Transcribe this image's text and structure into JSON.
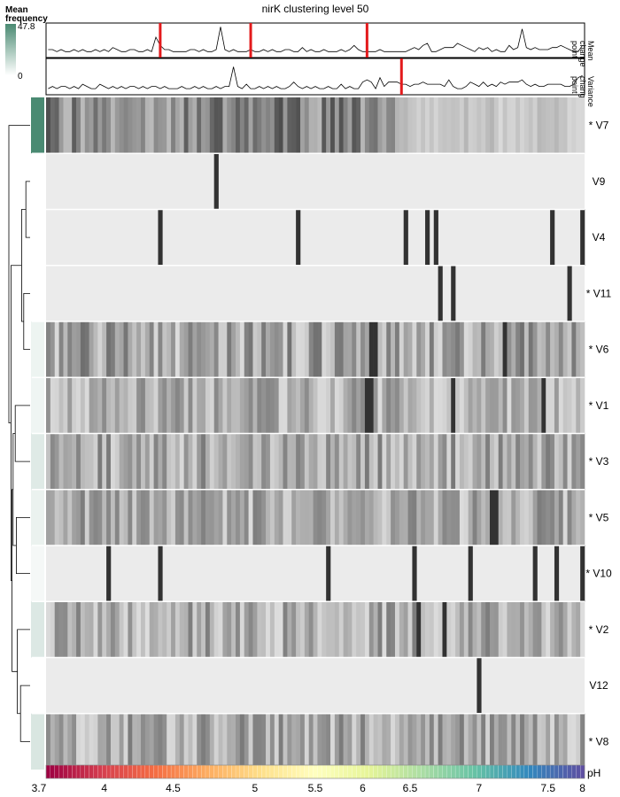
{
  "chart_data": {
    "type": "heatmap",
    "title": "nirK clustering level 50",
    "legend": {
      "title_line1": "Mean",
      "title_line2": "frequency",
      "max_label": "47.8",
      "min_label": "0",
      "max_value": 47.8,
      "min_value": 0,
      "low_color": "#ffffff",
      "high_color": "#4a8a72"
    },
    "track_labels": [
      {
        "line1": "Mean",
        "line2": "change",
        "line3": "point"
      },
      {
        "line1": "Variance",
        "line2": "change",
        "line3": "point"
      }
    ],
    "n_samples": 125,
    "track_max": 15,
    "mean_track": [
      3,
      3,
      2,
      3,
      2,
      2,
      3,
      2,
      3,
      2,
      2,
      3,
      2,
      3,
      2,
      4,
      3,
      2,
      2,
      3,
      3,
      2,
      2,
      3,
      2,
      9,
      5,
      3,
      3,
      2,
      2,
      2,
      2,
      3,
      3,
      2,
      3,
      2,
      2,
      3,
      14,
      3,
      2,
      3,
      2,
      2,
      2,
      3,
      2,
      2,
      3,
      2,
      3,
      2,
      2,
      3,
      3,
      2,
      2,
      4,
      2,
      3,
      2,
      2,
      3,
      2,
      2,
      2,
      3,
      2,
      3,
      5,
      3,
      2,
      2,
      2,
      2,
      3,
      2,
      2,
      2,
      2,
      2,
      2,
      3,
      4,
      3,
      5,
      6,
      2,
      2,
      3,
      4,
      4,
      4,
      6,
      5,
      4,
      3,
      2,
      4,
      3,
      4,
      2,
      3,
      2,
      2,
      5,
      3,
      4,
      13,
      4,
      3,
      4,
      3,
      3,
      3,
      4,
      4,
      5,
      4,
      3,
      2,
      2,
      5
    ],
    "mean_change_points": [
      26,
      47,
      74
    ],
    "var_track": [
      2,
      3,
      2,
      3,
      3,
      2,
      3,
      2,
      4,
      3,
      2,
      2,
      4,
      3,
      2,
      3,
      2,
      3,
      2,
      3,
      3,
      2,
      3,
      2,
      3,
      3,
      2,
      3,
      2,
      2,
      2,
      3,
      2,
      2,
      3,
      2,
      3,
      2,
      2,
      3,
      2,
      3,
      3,
      12,
      3,
      2,
      4,
      2,
      2,
      3,
      2,
      3,
      2,
      3,
      2,
      2,
      3,
      5,
      3,
      2,
      3,
      2,
      3,
      2,
      2,
      3,
      2,
      2,
      4,
      2,
      3,
      2,
      2,
      5,
      6,
      5,
      2,
      7,
      3,
      5,
      5,
      5,
      4,
      4,
      3,
      4,
      4,
      5,
      4,
      4,
      4,
      4,
      3,
      6,
      3,
      2,
      2,
      3,
      5,
      4,
      3,
      5,
      3,
      4,
      3,
      5,
      4,
      5,
      5,
      5,
      6,
      4,
      3,
      4,
      3,
      3,
      4,
      4,
      4,
      4,
      3,
      3,
      4,
      7,
      8
    ],
    "var_change_points": [
      82
    ],
    "rows": [
      {
        "label": "* V7",
        "mean_frequency": 47.8,
        "base": 0.22,
        "amp": 0.5,
        "seed": 7,
        "fade_from": 83,
        "marks": []
      },
      {
        "label": "V9",
        "mean_frequency": 0,
        "base": 0.1,
        "amp": 0,
        "seed": 9,
        "fade_from": null,
        "marks": [
          39
        ]
      },
      {
        "label": "V4",
        "mean_frequency": 0,
        "base": 0.1,
        "amp": 0,
        "seed": 4,
        "fade_from": null,
        "marks": [
          26,
          58,
          83,
          88,
          90,
          117,
          124
        ]
      },
      {
        "label": "* V11",
        "mean_frequency": 0,
        "base": 0.1,
        "amp": 0,
        "seed": 11,
        "fade_from": null,
        "marks": [
          91,
          94,
          121
        ]
      },
      {
        "label": "* V6",
        "mean_frequency": 1.5,
        "base": 0.07,
        "amp": 0.5,
        "seed": 6,
        "fade_from": null,
        "marks": [
          75,
          76,
          106
        ]
      },
      {
        "label": "* V1",
        "mean_frequency": 1.2,
        "base": 0.07,
        "amp": 0.4,
        "seed": 1,
        "fade_from": null,
        "marks": [
          74,
          75,
          94,
          115
        ]
      },
      {
        "label": "* V3",
        "mean_frequency": 5.0,
        "base": 0.08,
        "amp": 0.45,
        "seed": 3,
        "fade_from": null,
        "marks": []
      },
      {
        "label": "* V5",
        "mean_frequency": 2.0,
        "base": 0.06,
        "amp": 0.45,
        "seed": 5,
        "fade_from": null,
        "marks": [
          103,
          104
        ]
      },
      {
        "label": "* V10",
        "mean_frequency": 0.5,
        "base": 0.1,
        "amp": 0,
        "seed": 10,
        "fade_from": null,
        "marks": [
          14,
          26,
          65,
          85,
          98,
          113,
          118,
          124
        ]
      },
      {
        "label": "* V2",
        "mean_frequency": 6.0,
        "base": 0.06,
        "amp": 0.45,
        "seed": 2,
        "fade_from": null,
        "marks": [
          86,
          92
        ]
      },
      {
        "label": "V12",
        "mean_frequency": 0,
        "base": 0.1,
        "amp": 0,
        "seed": 12,
        "fade_from": null,
        "marks": [
          100
        ]
      },
      {
        "label": "* V8",
        "mean_frequency": 7.0,
        "base": 0.07,
        "amp": 0.45,
        "seed": 8,
        "fade_from": null,
        "marks": []
      }
    ],
    "ph_axis": {
      "label": "pH",
      "min": 3.7,
      "max": 8.0,
      "ticks": [
        {
          "label": "3.7",
          "value": 3.7
        },
        {
          "label": "4",
          "value": 4.0
        },
        {
          "label": "4.5",
          "value": 4.5
        },
        {
          "label": "5",
          "value": 5.0
        },
        {
          "label": "5.5",
          "value": 5.5
        },
        {
          "label": "6",
          "value": 6.0
        },
        {
          "label": "6.5",
          "value": 6.5
        },
        {
          "label": "7",
          "value": 7.0
        },
        {
          "label": "7.5",
          "value": 7.5
        },
        {
          "label": "8",
          "value": 8.0
        }
      ],
      "tick_sample_index": [
        0,
        13,
        29,
        48,
        62,
        73,
        84,
        100,
        116,
        124
      ]
    },
    "colors": {
      "change_point": "#e31a1c",
      "heatmap_base": "#ebebeb",
      "heatmap_dark": "#111111",
      "ph_palette": [
        "#9e0142",
        "#d53e4f",
        "#f46d43",
        "#fdae61",
        "#fee08b",
        "#ffffbf",
        "#e6f598",
        "#abdda4",
        "#66c2a5",
        "#3288bd",
        "#5e4fa2"
      ]
    },
    "dendrogram": {
      "leaf_order": [
        "* V7",
        "V9",
        "V4",
        "* V11",
        "* V6",
        "* V1",
        "* V3",
        "* V5",
        "* V10",
        "* V2",
        "V12",
        "* V8"
      ],
      "merges": [
        [
          1,
          2,
          0.2
        ],
        [
          3,
          4,
          0.3
        ],
        [
          12,
          13,
          0.4
        ],
        [
          10,
          11,
          0.45
        ],
        [
          9,
          15,
          0.6
        ],
        [
          7,
          8,
          0.65
        ],
        [
          5,
          6,
          0.7
        ],
        [
          18,
          17,
          0.8
        ],
        [
          19,
          16,
          0.85
        ],
        [
          14,
          20,
          0.9
        ],
        [
          0,
          21,
          1.0
        ]
      ]
    }
  }
}
